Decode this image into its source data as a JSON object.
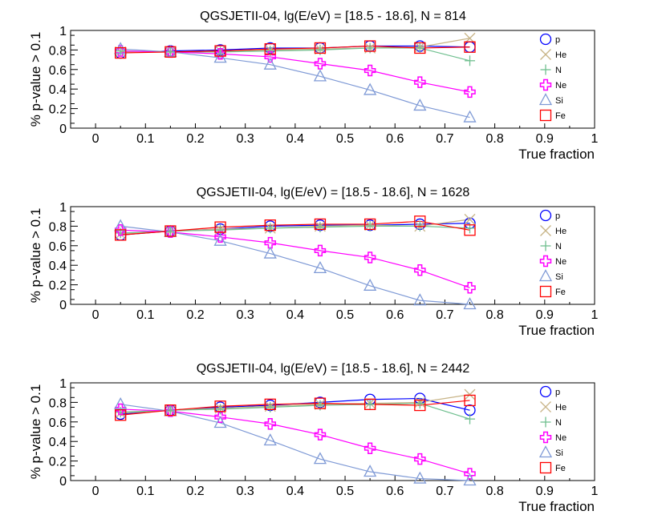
{
  "x_axis_label": "True fraction",
  "y_axis_label": "% p-value > 0.1",
  "legend": [
    {
      "key": "p",
      "label": "p",
      "color": "#0000ff",
      "marker": "circle"
    },
    {
      "key": "He",
      "label": "He",
      "color": "#c8b487",
      "marker": "cross"
    },
    {
      "key": "N",
      "label": "N",
      "color": "#6fbf8f",
      "marker": "plus"
    },
    {
      "key": "Ne",
      "label": "Ne",
      "color": "#ff00ff",
      "marker": "open-plus"
    },
    {
      "key": "Si",
      "label": "Si",
      "color": "#7f9ad6",
      "marker": "triangle"
    },
    {
      "key": "Fe",
      "label": "Fe",
      "color": "#ff0000",
      "marker": "square"
    }
  ],
  "chart_data": [
    {
      "type": "line",
      "title": "QGSJETII-04, lg(E/eV) = [18.5 - 18.6], N = 814",
      "xlabel": "True fraction",
      "ylabel": "% p-value > 0.1",
      "xlim": [
        -0.05,
        1.0
      ],
      "ylim": [
        0,
        1
      ],
      "x_ticks": [
        "0",
        "0.1",
        "0.2",
        "0.3",
        "0.4",
        "0.5",
        "0.6",
        "0.7",
        "0.8",
        "0.9",
        "1"
      ],
      "y_ticks": [
        "0",
        "0.2",
        "0.4",
        "0.6",
        "0.8",
        "1"
      ],
      "x": [
        0.05,
        0.15,
        0.25,
        0.35,
        0.45,
        0.55,
        0.65,
        0.75
      ],
      "series": [
        {
          "name": "p",
          "values": [
            0.77,
            0.79,
            0.8,
            0.82,
            0.82,
            0.84,
            0.84,
            0.83
          ]
        },
        {
          "name": "He",
          "values": [
            0.78,
            0.78,
            0.79,
            0.8,
            0.81,
            0.82,
            0.83,
            0.92
          ]
        },
        {
          "name": "N",
          "values": [
            0.79,
            0.78,
            0.78,
            0.79,
            0.8,
            0.82,
            0.82,
            0.69
          ]
        },
        {
          "name": "Ne",
          "values": [
            0.79,
            0.78,
            0.76,
            0.73,
            0.66,
            0.59,
            0.47,
            0.37
          ]
        },
        {
          "name": "Si",
          "values": [
            0.81,
            0.78,
            0.72,
            0.65,
            0.53,
            0.39,
            0.23,
            0.11
          ]
        },
        {
          "name": "Fe",
          "values": [
            0.77,
            0.78,
            0.79,
            0.81,
            0.82,
            0.84,
            0.82,
            0.83
          ]
        }
      ]
    },
    {
      "type": "line",
      "title": "QGSJETII-04, lg(E/eV) = [18.5 - 18.6], N = 1628",
      "xlabel": "True fraction",
      "ylabel": "% p-value > 0.1",
      "xlim": [
        -0.05,
        1.0
      ],
      "ylim": [
        0,
        1
      ],
      "x_ticks": [
        "0",
        "0.1",
        "0.2",
        "0.3",
        "0.4",
        "0.5",
        "0.6",
        "0.7",
        "0.8",
        "0.9",
        "1"
      ],
      "y_ticks": [
        "0",
        "0.2",
        "0.4",
        "0.6",
        "0.8",
        "1"
      ],
      "x": [
        0.05,
        0.15,
        0.25,
        0.35,
        0.45,
        0.55,
        0.65,
        0.75
      ],
      "series": [
        {
          "name": "p",
          "values": [
            0.71,
            0.75,
            0.77,
            0.8,
            0.81,
            0.81,
            0.82,
            0.83
          ]
        },
        {
          "name": "He",
          "values": [
            0.72,
            0.75,
            0.77,
            0.78,
            0.8,
            0.81,
            0.8,
            0.87
          ]
        },
        {
          "name": "N",
          "values": [
            0.73,
            0.75,
            0.76,
            0.78,
            0.79,
            0.8,
            0.8,
            0.78
          ]
        },
        {
          "name": "Ne",
          "values": [
            0.76,
            0.74,
            0.69,
            0.63,
            0.55,
            0.48,
            0.35,
            0.17
          ]
        },
        {
          "name": "Si",
          "values": [
            0.8,
            0.74,
            0.65,
            0.52,
            0.37,
            0.19,
            0.04,
            0.0
          ]
        },
        {
          "name": "Fe",
          "values": [
            0.71,
            0.75,
            0.79,
            0.81,
            0.82,
            0.82,
            0.85,
            0.76
          ]
        }
      ]
    },
    {
      "type": "line",
      "title": "QGSJETII-04, lg(E/eV) = [18.5 - 18.6], N = 2442",
      "xlabel": "True fraction",
      "ylabel": "% p-value > 0.1",
      "xlim": [
        -0.05,
        1.0
      ],
      "ylim": [
        0,
        1
      ],
      "x_ticks": [
        "0",
        "0.1",
        "0.2",
        "0.3",
        "0.4",
        "0.5",
        "0.6",
        "0.7",
        "0.8",
        "0.9",
        "1"
      ],
      "y_ticks": [
        "0",
        "0.2",
        "0.4",
        "0.6",
        "0.8",
        "1"
      ],
      "x": [
        0.05,
        0.15,
        0.25,
        0.35,
        0.45,
        0.55,
        0.65,
        0.75
      ],
      "series": [
        {
          "name": "p",
          "values": [
            0.68,
            0.72,
            0.75,
            0.77,
            0.8,
            0.83,
            0.84,
            0.72
          ]
        },
        {
          "name": "He",
          "values": [
            0.69,
            0.72,
            0.74,
            0.76,
            0.78,
            0.79,
            0.8,
            0.88
          ]
        },
        {
          "name": "N",
          "values": [
            0.7,
            0.72,
            0.73,
            0.75,
            0.77,
            0.78,
            0.79,
            0.63
          ]
        },
        {
          "name": "Ne",
          "values": [
            0.73,
            0.71,
            0.65,
            0.58,
            0.47,
            0.33,
            0.22,
            0.07
          ]
        },
        {
          "name": "Si",
          "values": [
            0.78,
            0.71,
            0.59,
            0.41,
            0.22,
            0.09,
            0.02,
            0.0
          ]
        },
        {
          "name": "Fe",
          "values": [
            0.67,
            0.72,
            0.76,
            0.78,
            0.79,
            0.78,
            0.77,
            0.82
          ]
        }
      ]
    }
  ]
}
